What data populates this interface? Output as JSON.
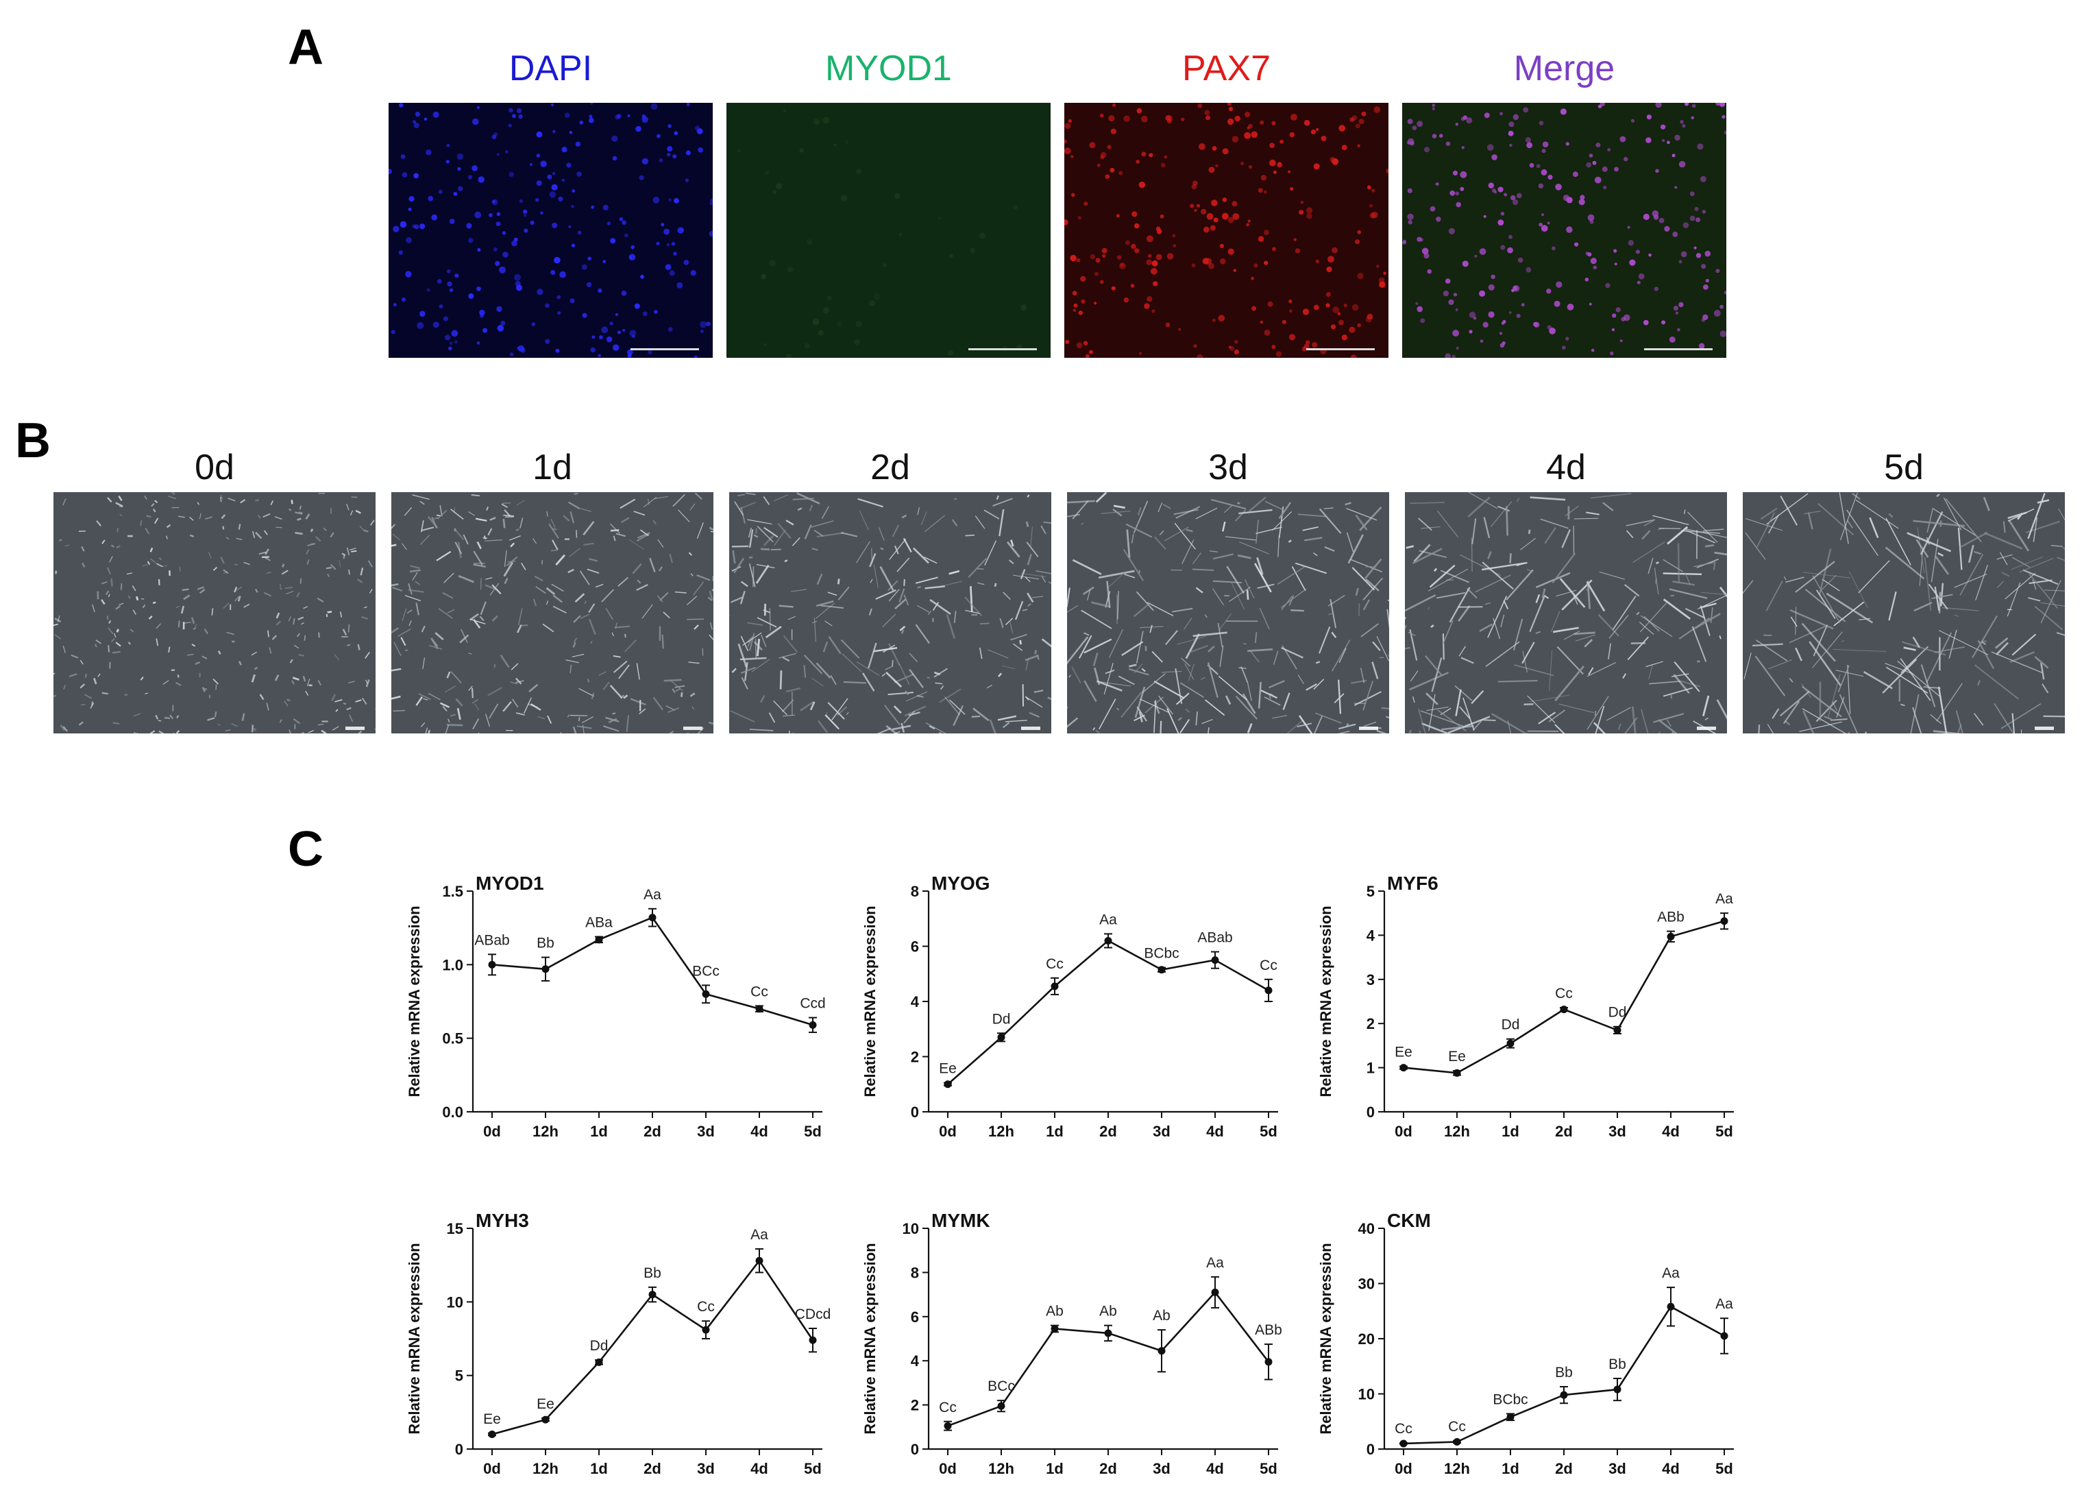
{
  "panel_a": {
    "letter": "A",
    "channels": [
      {
        "label": "DAPI",
        "color": "#1a1ad6",
        "bg": "#05052a",
        "dot": "#2a2aff"
      },
      {
        "label": "MYOD1",
        "color": "#19b36b",
        "bg": "#0f2a12",
        "dot": "#1b3a1b"
      },
      {
        "label": "PAX7",
        "color": "#e01b1b",
        "bg": "#2a0606",
        "dot": "#d01a1a"
      },
      {
        "label": "Merge",
        "color": "#7b3fc4",
        "bg": "#13240f",
        "dot": "#b04ad0"
      }
    ]
  },
  "panel_b": {
    "letter": "B",
    "days": [
      "0d",
      "1d",
      "2d",
      "3d",
      "4d",
      "5d"
    ]
  },
  "panel_c": {
    "letter": "C",
    "ylabel": "Relative mRNA expression"
  },
  "chart_data": [
    {
      "type": "line",
      "title": "MYOD1",
      "ylabel": "Relative mRNA expression",
      "categories": [
        "0d",
        "12h",
        "1d",
        "2d",
        "3d",
        "4d",
        "5d"
      ],
      "values": [
        1.0,
        0.97,
        1.17,
        1.32,
        0.8,
        0.7,
        0.59
      ],
      "errors": [
        0.07,
        0.08,
        0.02,
        0.06,
        0.06,
        0.02,
        0.05
      ],
      "letters": [
        "ABab",
        "Bb",
        "ABa",
        "Aa",
        "BCc",
        "Cc",
        "Ccd"
      ],
      "ylim": [
        0,
        1.5
      ],
      "yticks": [
        "0.0",
        "0.5",
        "1.0",
        "1.5"
      ]
    },
    {
      "type": "line",
      "title": "MYOG",
      "ylabel": "Relative mRNA expression",
      "categories": [
        "0d",
        "12h",
        "1d",
        "2d",
        "3d",
        "4d",
        "5d"
      ],
      "values": [
        1.0,
        2.7,
        4.55,
        6.2,
        5.15,
        5.5,
        4.4
      ],
      "errors": [
        0.05,
        0.15,
        0.3,
        0.25,
        0.08,
        0.3,
        0.4
      ],
      "letters": [
        "Ee",
        "Dd",
        "Cc",
        "Aa",
        "BCbc",
        "ABab",
        "Cc"
      ],
      "ylim": [
        0,
        8
      ],
      "yticks": [
        "0",
        "2",
        "4",
        "6",
        "8"
      ]
    },
    {
      "type": "line",
      "title": "MYF6",
      "ylabel": "Relative mRNA expression",
      "categories": [
        "0d",
        "12h",
        "1d",
        "2d",
        "3d",
        "4d",
        "5d"
      ],
      "values": [
        1.0,
        0.88,
        1.55,
        2.32,
        1.85,
        3.97,
        4.32
      ],
      "errors": [
        0.03,
        0.05,
        0.1,
        0.04,
        0.08,
        0.12,
        0.18
      ],
      "letters": [
        "Ee",
        "Ee",
        "Dd",
        "Cc",
        "Dd",
        "ABb",
        "Aa"
      ],
      "ylim": [
        0,
        5
      ],
      "yticks": [
        "0",
        "1",
        "2",
        "3",
        "4",
        "5"
      ]
    },
    {
      "type": "line",
      "title": "MYH3",
      "ylabel": "Relative mRNA expression",
      "categories": [
        "0d",
        "12h",
        "1d",
        "2d",
        "3d",
        "4d",
        "5d"
      ],
      "values": [
        1.0,
        2.0,
        5.9,
        10.5,
        8.1,
        12.8,
        7.4
      ],
      "errors": [
        0.08,
        0.1,
        0.15,
        0.5,
        0.6,
        0.8,
        0.8
      ],
      "letters": [
        "Ee",
        "Ee",
        "Dd",
        "Bb",
        "Cc",
        "Aa",
        "CDcd"
      ],
      "ylim": [
        0,
        15
      ],
      "yticks": [
        "0",
        "5",
        "10",
        "15"
      ]
    },
    {
      "type": "line",
      "title": "MYMK",
      "ylabel": "Relative mRNA expression",
      "categories": [
        "0d",
        "12h",
        "1d",
        "2d",
        "3d",
        "4d",
        "5d"
      ],
      "values": [
        1.05,
        1.95,
        5.45,
        5.25,
        4.45,
        7.1,
        3.95
      ],
      "errors": [
        0.2,
        0.25,
        0.15,
        0.35,
        0.95,
        0.7,
        0.8
      ],
      "letters": [
        "Cc",
        "BCc",
        "Ab",
        "Ab",
        "Ab",
        "Aa",
        "ABb"
      ],
      "ylim": [
        0,
        10
      ],
      "yticks": [
        "0",
        "2",
        "4",
        "6",
        "8",
        "10"
      ]
    },
    {
      "type": "line",
      "title": "CKM",
      "ylabel": "Relative mRNA expression",
      "categories": [
        "0d",
        "12h",
        "1d",
        "2d",
        "3d",
        "4d",
        "5d"
      ],
      "values": [
        1.0,
        1.3,
        5.8,
        9.8,
        10.8,
        25.8,
        20.5
      ],
      "errors": [
        0.1,
        0.2,
        0.6,
        1.5,
        2.0,
        3.5,
        3.2
      ],
      "letters": [
        "Cc",
        "Cc",
        "BCbc",
        "Bb",
        "Bb",
        "Aa",
        "Aa"
      ],
      "ylim": [
        0,
        40
      ],
      "yticks": [
        "0",
        "10",
        "20",
        "30",
        "40"
      ]
    }
  ]
}
